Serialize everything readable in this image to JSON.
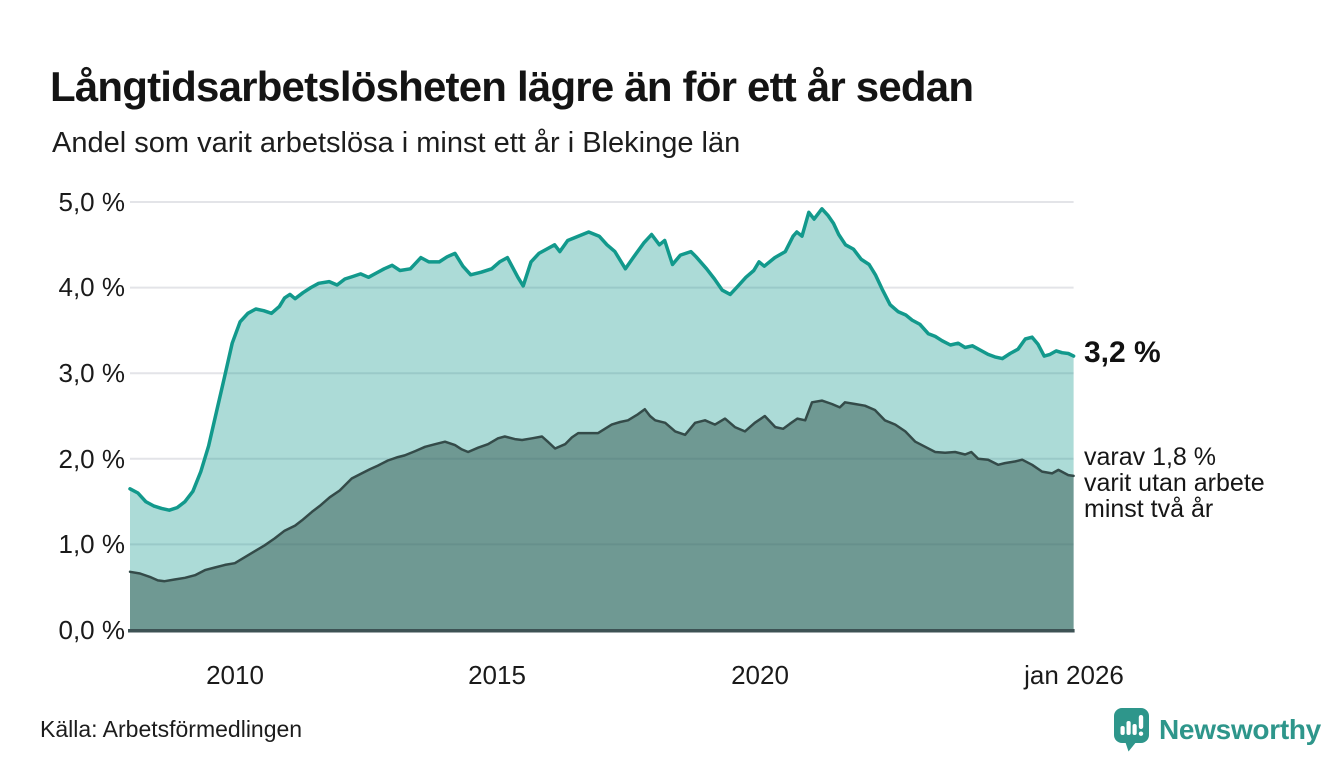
{
  "chart_data": {
    "type": "area",
    "title": "Långtidsarbetslösheten lägre än för ett år sedan",
    "subtitle": "Andel som varit arbetslösa i minst ett år i Blekinge län",
    "x_range": [
      2008,
      2026.08
    ],
    "ylim": [
      0,
      5
    ],
    "grid": "horizontal",
    "legend": "none",
    "yticks": [
      {
        "value": 0,
        "label": "0,0 %"
      },
      {
        "value": 1,
        "label": "1,0 %"
      },
      {
        "value": 2,
        "label": "2,0 %"
      },
      {
        "value": 3,
        "label": "3,0 %"
      },
      {
        "value": 4,
        "label": "4,0 %"
      },
      {
        "value": 5,
        "label": "5,0 %"
      }
    ],
    "xticks": [
      {
        "value": 2010,
        "label": "2010"
      },
      {
        "value": 2015,
        "label": "2015"
      },
      {
        "value": 2020,
        "label": "2020"
      },
      {
        "value": 2026,
        "label": "jan 2026"
      }
    ],
    "series": [
      {
        "name": "Andel arbetslösa minst ett år",
        "line_color": "#12998c",
        "fill_color": "rgba(18,153,140,0.35)",
        "end_label": "3,2 %",
        "points": [
          [
            2008.0,
            1.65
          ],
          [
            2008.15,
            1.6
          ],
          [
            2008.3,
            1.5
          ],
          [
            2008.45,
            1.45
          ],
          [
            2008.6,
            1.42
          ],
          [
            2008.75,
            1.4
          ],
          [
            2008.9,
            1.43
          ],
          [
            2009.05,
            1.5
          ],
          [
            2009.2,
            1.62
          ],
          [
            2009.35,
            1.85
          ],
          [
            2009.5,
            2.15
          ],
          [
            2009.65,
            2.55
          ],
          [
            2009.8,
            2.95
          ],
          [
            2009.95,
            3.35
          ],
          [
            2010.1,
            3.6
          ],
          [
            2010.25,
            3.7
          ],
          [
            2010.4,
            3.75
          ],
          [
            2010.55,
            3.73
          ],
          [
            2010.7,
            3.7
          ],
          [
            2010.85,
            3.78
          ],
          [
            2010.95,
            3.88
          ],
          [
            2011.05,
            3.92
          ],
          [
            2011.15,
            3.87
          ],
          [
            2011.3,
            3.94
          ],
          [
            2011.45,
            4.0
          ],
          [
            2011.6,
            4.05
          ],
          [
            2011.8,
            4.07
          ],
          [
            2011.95,
            4.03
          ],
          [
            2012.1,
            4.1
          ],
          [
            2012.25,
            4.13
          ],
          [
            2012.4,
            4.16
          ],
          [
            2012.55,
            4.12
          ],
          [
            2012.7,
            4.17
          ],
          [
            2012.85,
            4.22
          ],
          [
            2013.0,
            4.26
          ],
          [
            2013.15,
            4.2
          ],
          [
            2013.35,
            4.22
          ],
          [
            2013.55,
            4.35
          ],
          [
            2013.7,
            4.3
          ],
          [
            2013.9,
            4.3
          ],
          [
            2014.05,
            4.36
          ],
          [
            2014.2,
            4.4
          ],
          [
            2014.35,
            4.25
          ],
          [
            2014.5,
            4.15
          ],
          [
            2014.7,
            4.18
          ],
          [
            2014.9,
            4.22
          ],
          [
            2015.05,
            4.3
          ],
          [
            2015.2,
            4.35
          ],
          [
            2015.4,
            4.12
          ],
          [
            2015.5,
            4.02
          ],
          [
            2015.65,
            4.3
          ],
          [
            2015.8,
            4.4
          ],
          [
            2015.95,
            4.45
          ],
          [
            2016.1,
            4.5
          ],
          [
            2016.2,
            4.42
          ],
          [
            2016.35,
            4.55
          ],
          [
            2016.55,
            4.6
          ],
          [
            2016.75,
            4.65
          ],
          [
            2016.95,
            4.6
          ],
          [
            2017.1,
            4.5
          ],
          [
            2017.25,
            4.42
          ],
          [
            2017.45,
            4.22
          ],
          [
            2017.6,
            4.35
          ],
          [
            2017.8,
            4.52
          ],
          [
            2017.95,
            4.62
          ],
          [
            2018.1,
            4.5
          ],
          [
            2018.2,
            4.55
          ],
          [
            2018.35,
            4.27
          ],
          [
            2018.5,
            4.38
          ],
          [
            2018.7,
            4.42
          ],
          [
            2018.8,
            4.36
          ],
          [
            2019.0,
            4.22
          ],
          [
            2019.15,
            4.1
          ],
          [
            2019.3,
            3.97
          ],
          [
            2019.45,
            3.92
          ],
          [
            2019.6,
            4.02
          ],
          [
            2019.75,
            4.12
          ],
          [
            2019.9,
            4.2
          ],
          [
            2020.0,
            4.3
          ],
          [
            2020.1,
            4.25
          ],
          [
            2020.3,
            4.35
          ],
          [
            2020.5,
            4.42
          ],
          [
            2020.65,
            4.6
          ],
          [
            2020.72,
            4.65
          ],
          [
            2020.82,
            4.6
          ],
          [
            2020.95,
            4.88
          ],
          [
            2021.05,
            4.8
          ],
          [
            2021.2,
            4.92
          ],
          [
            2021.32,
            4.84
          ],
          [
            2021.42,
            4.75
          ],
          [
            2021.52,
            4.62
          ],
          [
            2021.65,
            4.5
          ],
          [
            2021.8,
            4.45
          ],
          [
            2021.95,
            4.33
          ],
          [
            2022.1,
            4.27
          ],
          [
            2022.22,
            4.15
          ],
          [
            2022.35,
            3.98
          ],
          [
            2022.5,
            3.8
          ],
          [
            2022.65,
            3.72
          ],
          [
            2022.8,
            3.68
          ],
          [
            2022.92,
            3.62
          ],
          [
            2023.07,
            3.57
          ],
          [
            2023.23,
            3.46
          ],
          [
            2023.36,
            3.43
          ],
          [
            2023.49,
            3.38
          ],
          [
            2023.65,
            3.33
          ],
          [
            2023.8,
            3.35
          ],
          [
            2023.93,
            3.3
          ],
          [
            2024.07,
            3.32
          ],
          [
            2024.22,
            3.27
          ],
          [
            2024.37,
            3.22
          ],
          [
            2024.5,
            3.19
          ],
          [
            2024.64,
            3.17
          ],
          [
            2024.79,
            3.23
          ],
          [
            2024.94,
            3.28
          ],
          [
            2025.08,
            3.4
          ],
          [
            2025.21,
            3.42
          ],
          [
            2025.32,
            3.34
          ],
          [
            2025.44,
            3.2
          ],
          [
            2025.55,
            3.22
          ],
          [
            2025.67,
            3.26
          ],
          [
            2025.78,
            3.24
          ],
          [
            2025.9,
            3.23
          ],
          [
            2026.0,
            3.2
          ]
        ]
      },
      {
        "name": "Andel arbetslösa minst två år",
        "line_color": "#344b49",
        "fill_color": "rgba(56,92,84,0.52)",
        "end_label_lines": [
          "varav 1,8 %",
          "varit utan arbete",
          "minst två år"
        ],
        "points": [
          [
            2008.0,
            0.68
          ],
          [
            2008.19,
            0.66
          ],
          [
            2008.38,
            0.62
          ],
          [
            2008.53,
            0.58
          ],
          [
            2008.66,
            0.57
          ],
          [
            2008.85,
            0.59
          ],
          [
            2009.05,
            0.61
          ],
          [
            2009.24,
            0.64
          ],
          [
            2009.43,
            0.7
          ],
          [
            2009.62,
            0.73
          ],
          [
            2009.81,
            0.76
          ],
          [
            2010.0,
            0.78
          ],
          [
            2010.19,
            0.85
          ],
          [
            2010.38,
            0.92
          ],
          [
            2010.57,
            0.99
          ],
          [
            2010.76,
            1.07
          ],
          [
            2010.95,
            1.16
          ],
          [
            2011.15,
            1.22
          ],
          [
            2011.28,
            1.28
          ],
          [
            2011.47,
            1.38
          ],
          [
            2011.62,
            1.45
          ],
          [
            2011.81,
            1.55
          ],
          [
            2012.0,
            1.63
          ],
          [
            2012.23,
            1.77
          ],
          [
            2012.42,
            1.83
          ],
          [
            2012.58,
            1.88
          ],
          [
            2012.73,
            1.92
          ],
          [
            2012.92,
            1.98
          ],
          [
            2013.11,
            2.02
          ],
          [
            2013.24,
            2.04
          ],
          [
            2013.44,
            2.09
          ],
          [
            2013.63,
            2.14
          ],
          [
            2013.82,
            2.17
          ],
          [
            2014.01,
            2.2
          ],
          [
            2014.2,
            2.16
          ],
          [
            2014.33,
            2.11
          ],
          [
            2014.45,
            2.08
          ],
          [
            2014.64,
            2.13
          ],
          [
            2014.83,
            2.17
          ],
          [
            2015.02,
            2.24
          ],
          [
            2015.15,
            2.26
          ],
          [
            2015.34,
            2.23
          ],
          [
            2015.48,
            2.22
          ],
          [
            2015.67,
            2.24
          ],
          [
            2015.86,
            2.26
          ],
          [
            2015.97,
            2.2
          ],
          [
            2016.11,
            2.12
          ],
          [
            2016.3,
            2.17
          ],
          [
            2016.43,
            2.25
          ],
          [
            2016.55,
            2.3
          ],
          [
            2016.77,
            2.3
          ],
          [
            2016.93,
            2.3
          ],
          [
            2017.06,
            2.35
          ],
          [
            2017.19,
            2.4
          ],
          [
            2017.35,
            2.43
          ],
          [
            2017.5,
            2.45
          ],
          [
            2017.69,
            2.52
          ],
          [
            2017.82,
            2.58
          ],
          [
            2017.92,
            2.5
          ],
          [
            2018.02,
            2.45
          ],
          [
            2018.21,
            2.42
          ],
          [
            2018.4,
            2.32
          ],
          [
            2018.59,
            2.28
          ],
          [
            2018.78,
            2.42
          ],
          [
            2018.97,
            2.45
          ],
          [
            2019.16,
            2.4
          ],
          [
            2019.35,
            2.47
          ],
          [
            2019.54,
            2.37
          ],
          [
            2019.73,
            2.32
          ],
          [
            2019.92,
            2.42
          ],
          [
            2020.11,
            2.5
          ],
          [
            2020.31,
            2.37
          ],
          [
            2020.46,
            2.35
          ],
          [
            2020.59,
            2.41
          ],
          [
            2020.73,
            2.47
          ],
          [
            2020.88,
            2.45
          ],
          [
            2021.01,
            2.66
          ],
          [
            2021.2,
            2.68
          ],
          [
            2021.39,
            2.64
          ],
          [
            2021.54,
            2.6
          ],
          [
            2021.64,
            2.66
          ],
          [
            2021.83,
            2.64
          ],
          [
            2022.02,
            2.62
          ],
          [
            2022.21,
            2.57
          ],
          [
            2022.4,
            2.45
          ],
          [
            2022.6,
            2.4
          ],
          [
            2022.79,
            2.32
          ],
          [
            2022.98,
            2.2
          ],
          [
            2023.17,
            2.14
          ],
          [
            2023.36,
            2.08
          ],
          [
            2023.55,
            2.07
          ],
          [
            2023.74,
            2.08
          ],
          [
            2023.93,
            2.05
          ],
          [
            2024.05,
            2.08
          ],
          [
            2024.18,
            2.0
          ],
          [
            2024.37,
            1.99
          ],
          [
            2024.56,
            1.93
          ],
          [
            2024.69,
            1.95
          ],
          [
            2024.89,
            1.97
          ],
          [
            2025.02,
            1.99
          ],
          [
            2025.21,
            1.93
          ],
          [
            2025.4,
            1.85
          ],
          [
            2025.59,
            1.83
          ],
          [
            2025.71,
            1.87
          ],
          [
            2025.9,
            1.81
          ],
          [
            2026.0,
            1.8
          ]
        ]
      }
    ]
  },
  "footer": {
    "source": "Källa: Arbetsförmedlingen",
    "brand": "Newsworthy"
  },
  "colors": {
    "accent_teal": "#12998c",
    "dark_series_line": "#344b49",
    "axis_line": "#3d5254",
    "gridline": "#e3e4e8",
    "brand_teal": "#2e968b",
    "title_text": "#141414"
  }
}
